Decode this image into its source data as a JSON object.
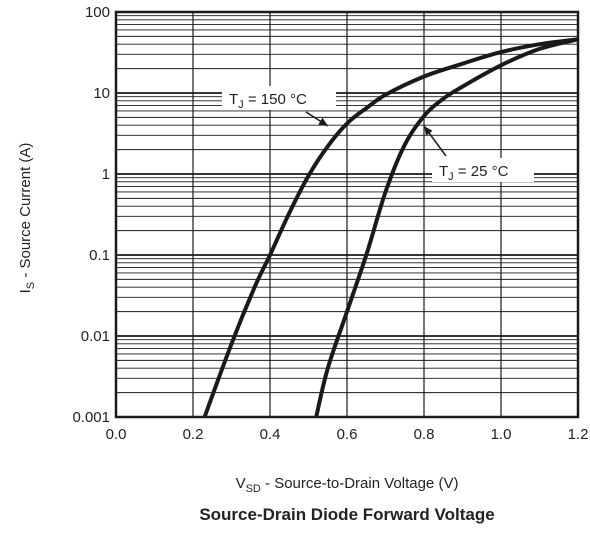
{
  "chart_data": {
    "type": "line",
    "title": "Source-Drain Diode Forward Voltage",
    "xlabel": {
      "main": "V",
      "sub": "SD",
      "rest": " - Source-to-Drain Voltage (V)"
    },
    "ylabel": {
      "main": "I",
      "sub": "S",
      "rest": " - Source Current (A)"
    },
    "xlim": [
      0.0,
      1.2
    ],
    "ylim": [
      0.001,
      100
    ],
    "yscale": "log",
    "grid": true,
    "x_ticks": [
      "0.0",
      "0.2",
      "0.4",
      "0.6",
      "0.8",
      "1.0",
      "1.2"
    ],
    "y_ticks": [
      "0.001",
      "0.01",
      "0.1",
      "1",
      "10",
      "100"
    ],
    "series": [
      {
        "name": "TJ = 150 °C",
        "label": {
          "main": "T",
          "sub": "J",
          "rest": " = 150 °C"
        },
        "x": [
          0.23,
          0.3,
          0.36,
          0.4,
          0.45,
          0.5,
          0.55,
          0.6,
          0.65,
          0.7,
          0.8,
          0.9,
          1.0,
          1.1,
          1.2
        ],
        "y": [
          0.001,
          0.008,
          0.04,
          0.1,
          0.33,
          0.95,
          2.2,
          4.2,
          6.5,
          9.5,
          16,
          23,
          32,
          40,
          46
        ]
      },
      {
        "name": "TJ = 25 °C",
        "label": {
          "main": "T",
          "sub": "J",
          "rest": " = 25 °C"
        },
        "x": [
          0.52,
          0.55,
          0.6,
          0.65,
          0.7,
          0.75,
          0.8,
          0.85,
          0.9,
          1.0,
          1.1,
          1.2
        ],
        "y": [
          0.001,
          0.004,
          0.02,
          0.1,
          0.6,
          2.3,
          5.2,
          8.5,
          12,
          22,
          35,
          46
        ]
      }
    ]
  }
}
